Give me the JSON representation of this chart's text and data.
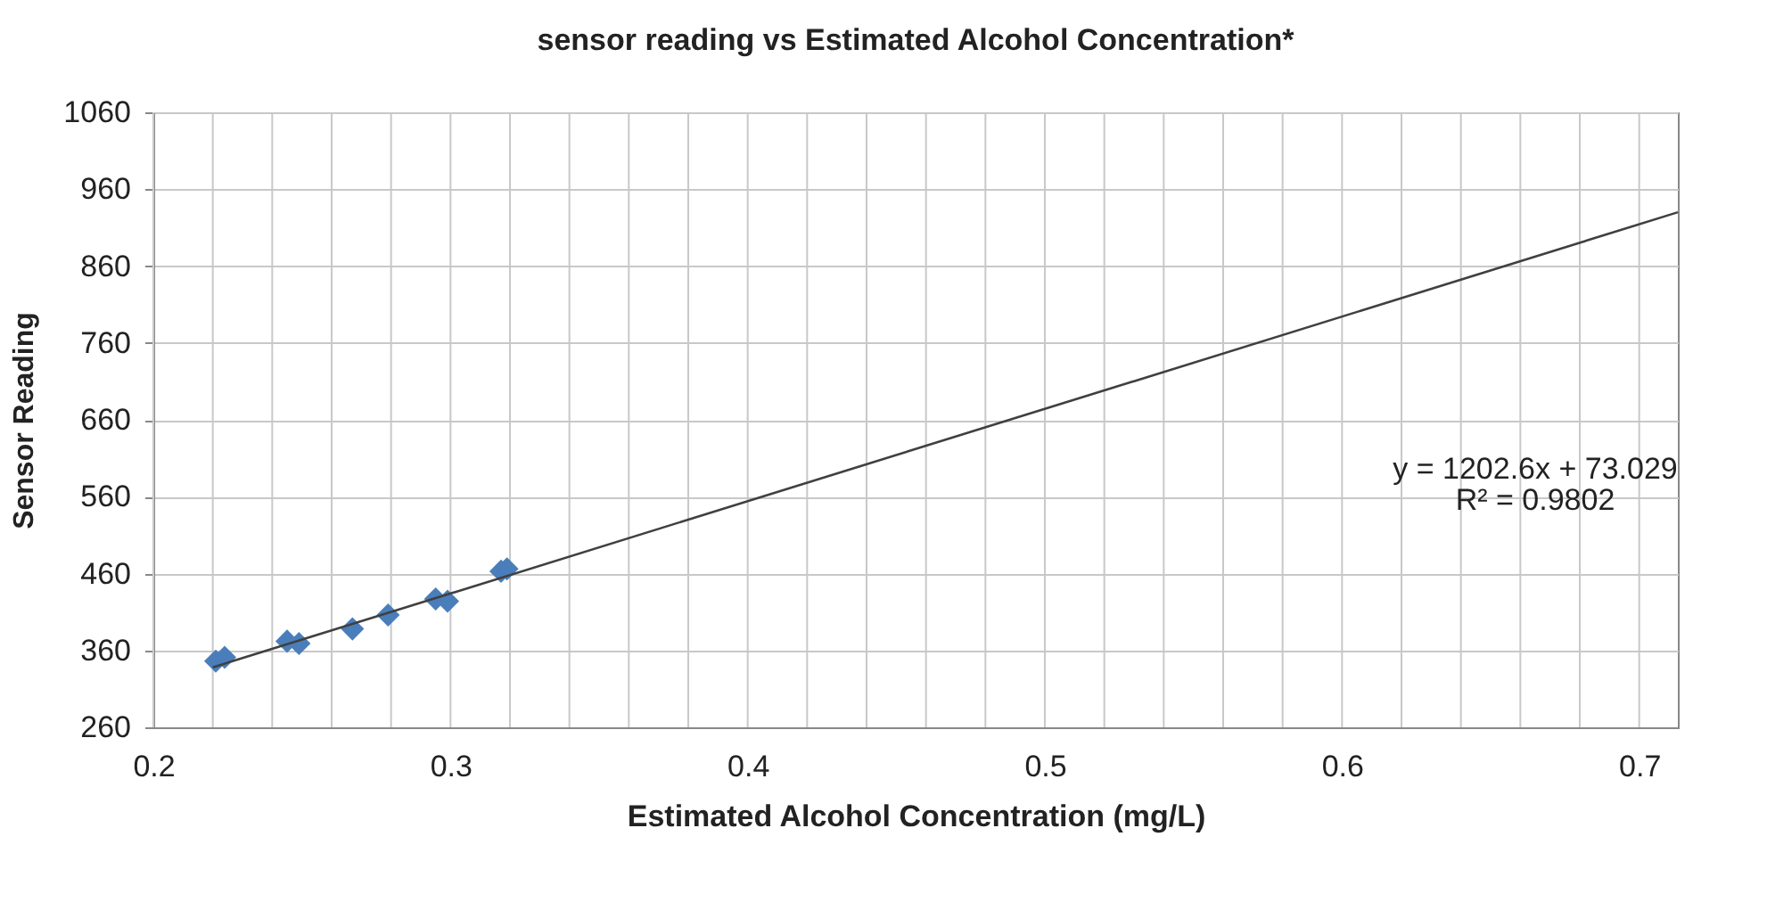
{
  "chart_data": {
    "type": "scatter",
    "title": "sensor reading vs Estimated Alcohol Concentration*",
    "xlabel": "Estimated  Alcohol Concentration  (mg/L)",
    "ylabel": "Sensor Reading",
    "xlim": [
      0.2,
      0.713
    ],
    "ylim": [
      260,
      1060
    ],
    "xticks": [
      0.2,
      {
        "value": 0.22,
        "label": null
      },
      {
        "value": 0.24,
        "label": null
      },
      {
        "value": 0.26,
        "label": null
      },
      {
        "value": 0.28,
        "label": null
      },
      0.3,
      {
        "value": 0.32,
        "label": null
      },
      {
        "value": 0.34,
        "label": null
      },
      {
        "value": 0.36,
        "label": null
      },
      {
        "value": 0.38,
        "label": null
      },
      0.4,
      {
        "value": 0.42,
        "label": null
      },
      {
        "value": 0.44,
        "label": null
      },
      {
        "value": 0.46,
        "label": null
      },
      {
        "value": 0.48,
        "label": null
      },
      0.5,
      {
        "value": 0.52,
        "label": null
      },
      {
        "value": 0.54,
        "label": null
      },
      {
        "value": 0.56,
        "label": null
      },
      {
        "value": 0.58,
        "label": null
      },
      0.6,
      {
        "value": 0.62,
        "label": null
      },
      {
        "value": 0.64,
        "label": null
      },
      {
        "value": 0.66,
        "label": null
      },
      {
        "value": 0.68,
        "label": null
      },
      0.7
    ],
    "yticks": [
      260,
      360,
      460,
      560,
      660,
      760,
      860,
      960,
      1060
    ],
    "grid": true,
    "series": [
      {
        "marker": "diamond",
        "color": "#4a7ebb",
        "x": [
          0.221,
          0.224,
          0.245,
          0.249,
          0.267,
          0.279,
          0.295,
          0.299,
          0.317,
          0.319
        ],
        "values": [
          346,
          351,
          372,
          369,
          388,
          406,
          427,
          424,
          463,
          466
        ]
      },
      {
        "type": "line",
        "color": "#404040",
        "line_style": "solid",
        "x": [
          0.22,
          0.713
        ],
        "values": [
          338,
          930
        ]
      }
    ],
    "annotations": [
      "y = 1202.6x + 73.029",
      "R² = 0.9802"
    ]
  }
}
